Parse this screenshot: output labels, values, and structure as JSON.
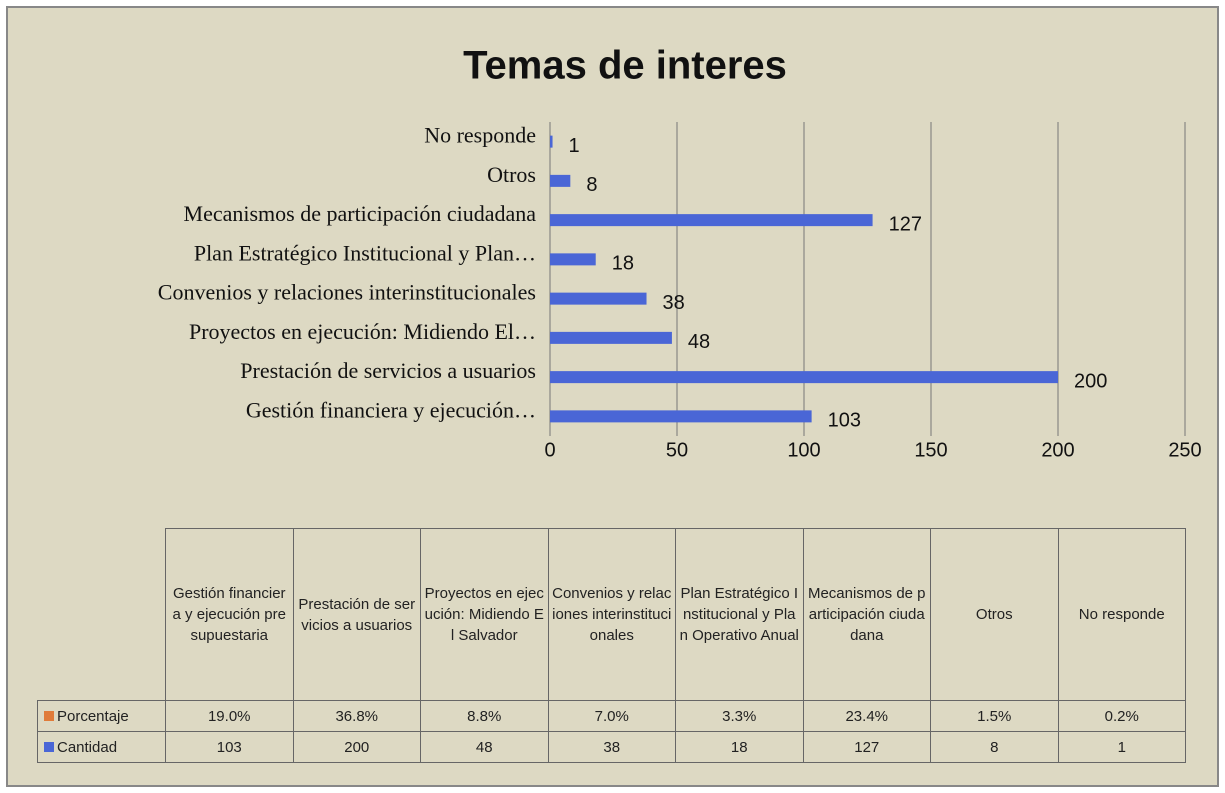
{
  "chart_data": {
    "type": "bar",
    "title": "Temas de interes",
    "categories": [
      "Gestión financiera y ejecución presupuestaria",
      "Prestación de servicios a usuarios",
      "Proyectos en ejecución: Midiendo El Salvador",
      "Convenios y relaciones interinstitucionales",
      "Plan Estratégico Institucional y Plan Operativo Anual",
      "Mecanismos de participación ciudadana",
      "Otros",
      "No responde"
    ],
    "category_labels": [
      "Gestión financiera y ejecución…",
      "Prestación de servicios a usuarios",
      "Proyectos en ejecución: Midiendo El…",
      "Convenios y relaciones interinstitucionales",
      "Plan Estratégico Institucional y Plan…",
      "Mecanismos de participación ciudadana",
      "Otros",
      "No responde"
    ],
    "series": [
      {
        "name": "Porcentaje",
        "color": "#e07b39",
        "values": [
          19.0,
          36.8,
          8.8,
          7.0,
          3.3,
          23.4,
          1.5,
          0.2
        ],
        "value_labels": [
          "19.0%",
          "36.8%",
          "8.8%",
          "7.0%",
          "3.3%",
          "23.4%",
          "1.5%",
          "0.2%"
        ]
      },
      {
        "name": "Cantidad",
        "color": "#4a66d6",
        "values": [
          103,
          200,
          48,
          38,
          18,
          127,
          8,
          1
        ]
      }
    ],
    "xlim": [
      0,
      250
    ],
    "xticks": [
      0,
      50,
      100,
      150,
      200,
      250
    ],
    "grid": true
  }
}
